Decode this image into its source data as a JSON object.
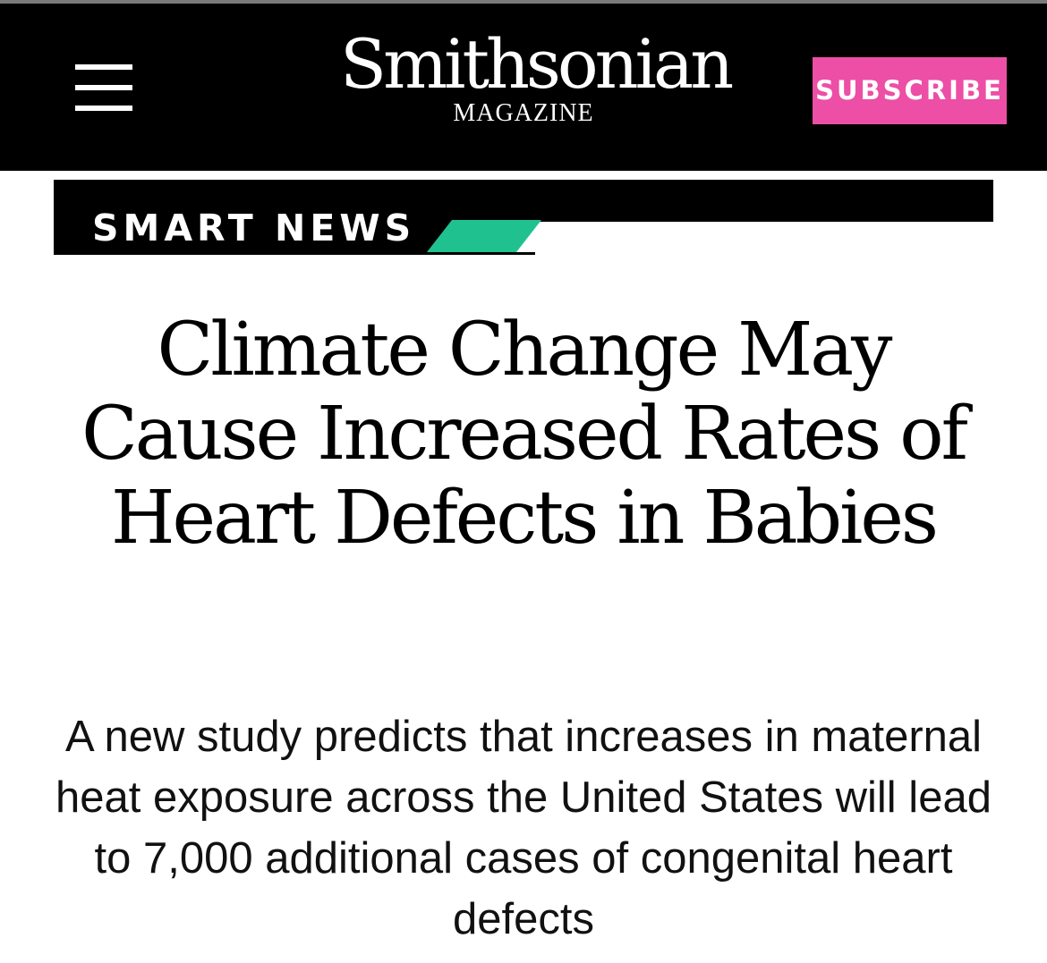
{
  "header": {
    "logo_name": "Smithsonian",
    "logo_sub": "MAGAZINE",
    "subscribe_label": "SUBSCRIBE",
    "menu_icon": "hamburger-menu-icon"
  },
  "section": {
    "label": "SMART NEWS",
    "accent_color": "#1fc28f"
  },
  "article": {
    "headline": "Climate Change May Cause Increased Rates of Heart Defects in Babies",
    "dek": "A new study predicts that increases in maternal heat exposure across the United States will lead to 7,000 additional cases of congenital heart defects"
  },
  "colors": {
    "header_bg": "#000000",
    "subscribe_bg": "#ec4fa5",
    "text": "#000000"
  }
}
